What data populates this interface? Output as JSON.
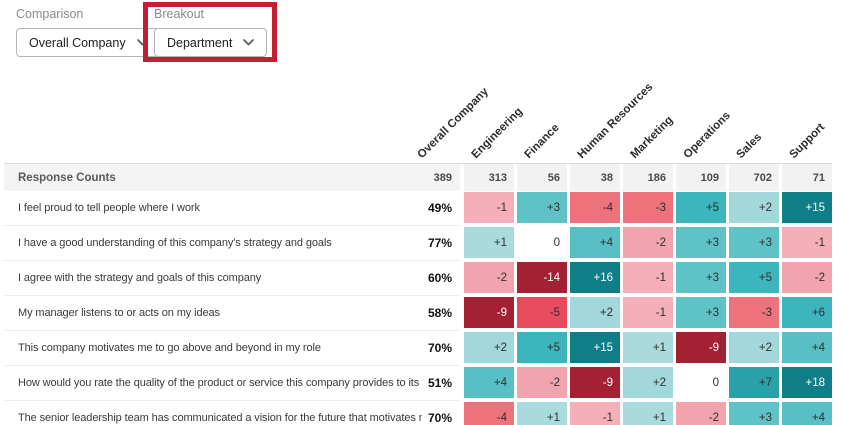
{
  "controls": {
    "comparison": {
      "label": "Comparison",
      "value": "Overall Company"
    },
    "breakout": {
      "label": "Breakout",
      "value": "Department"
    }
  },
  "annotation": {
    "color": "#c22032",
    "target": "breakout-dropdown"
  },
  "table": {
    "corner_label": "Response Counts",
    "columns": [
      "Overall Company",
      "Engineering",
      "Finance",
      "Human Resources",
      "Marketing",
      "Operations",
      "Sales",
      "Support"
    ],
    "response_counts": [
      "389",
      "313",
      "56",
      "38",
      "186",
      "109",
      "702",
      "71"
    ],
    "rows": [
      {
        "label": "I feel proud to tell people where I work",
        "overall": "49%",
        "values": [
          "-1",
          "+3",
          "-4",
          "-3",
          "+5",
          "+2",
          "+15"
        ]
      },
      {
        "label": "I have a good understanding of this company's strategy and goals",
        "overall": "77%",
        "values": [
          "+1",
          "0",
          "+4",
          "-2",
          "+3",
          "+3",
          "-1"
        ]
      },
      {
        "label": "I agree with the strategy and goals of this company",
        "overall": "60%",
        "values": [
          "-2",
          "-14",
          "+16",
          "-1",
          "+3",
          "+5",
          "-2"
        ]
      },
      {
        "label": "My manager listens to or acts on my ideas",
        "overall": "58%",
        "values": [
          "-9",
          "-5",
          "+2",
          "-1",
          "+3",
          "-3",
          "+6"
        ]
      },
      {
        "label": "This company motivates me to go above and beyond in my role",
        "overall": "70%",
        "values": [
          "+2",
          "+5",
          "+15",
          "+1",
          "-9",
          "+2",
          "+4"
        ]
      },
      {
        "label": "How would you rate the quality of the product or service this company provides to its customers?",
        "overall": "51%",
        "values": [
          "+4",
          "-2",
          "-9",
          "+2",
          "0",
          "+7",
          "+18"
        ]
      },
      {
        "label": "The senior leadership team has communicated a vision for the future that motivates me",
        "overall": "70%",
        "values": [
          "-4",
          "+1",
          "-1",
          "+1",
          "-2",
          "+3",
          "+4"
        ]
      }
    ],
    "heat_palette": {
      "0": "#ffffff",
      "+1": "#a9dbde",
      "+2": "#a2d8db",
      "+3": "#5fc2c7",
      "+4": "#58c0c5",
      "+5": "#3cb5bd",
      "+6": "#3cb5bd",
      "+7": "#2aa1aa",
      "+15": "#107e87",
      "+16": "#107e87",
      "+18": "#107e87",
      "-1": "#f4afb8",
      "-2": "#f2a4ae",
      "-3": "#ee727c",
      "-4": "#ee727c",
      "-5": "#e84b5e",
      "-9": "#a32133",
      "-14": "#a32133"
    },
    "white_text_values": [
      "-9",
      "-14",
      "+15",
      "+16",
      "+18"
    ]
  }
}
